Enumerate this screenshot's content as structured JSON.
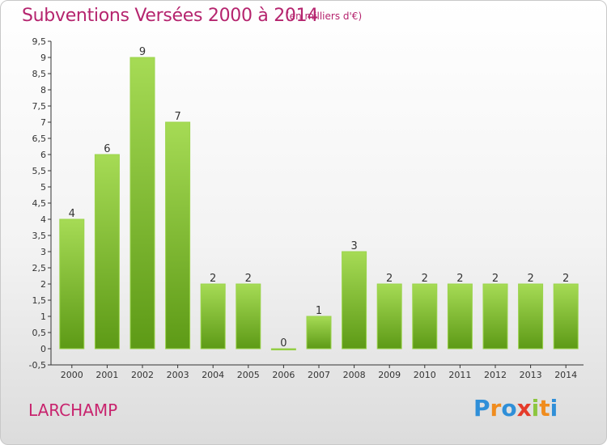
{
  "chart_data": {
    "type": "bar",
    "title": "Subventions Versées 2000 à 2014",
    "subtitle": "(en milliers d'€)",
    "categories": [
      "2000",
      "2001",
      "2002",
      "2003",
      "2004",
      "2005",
      "2006",
      "2007",
      "2008",
      "2009",
      "2010",
      "2011",
      "2012",
      "2013",
      "2014"
    ],
    "values": [
      4,
      6,
      9,
      7,
      2,
      2,
      0,
      1,
      3,
      2,
      2,
      2,
      2,
      2,
      2
    ],
    "value_labels": [
      "4",
      "6",
      "9",
      "7",
      "2",
      "2",
      "0",
      "1",
      "3",
      "2",
      "2",
      "2",
      "2",
      "2",
      "2"
    ],
    "ylim": [
      -0.5,
      9.5
    ],
    "yticks": [
      "-0,5",
      "0",
      "0,5",
      "1",
      "1,5",
      "2",
      "2,5",
      "3",
      "3,5",
      "4",
      "4,5",
      "5",
      "5,5",
      "6",
      "6,5",
      "7",
      "7,5",
      "8",
      "8,5",
      "9",
      "9,5"
    ],
    "ytick_values": [
      -0.5,
      0,
      0.5,
      1,
      1.5,
      2,
      2.5,
      3,
      3.5,
      4,
      4.5,
      5,
      5.5,
      6,
      6.5,
      7,
      7.5,
      8,
      8.5,
      9,
      9.5
    ],
    "grid": false,
    "bar_color": "#7cc62a"
  },
  "footer": {
    "place": "LARCHAMP",
    "brand": [
      "P",
      "r",
      "o",
      "x",
      "i",
      "t",
      "i"
    ]
  }
}
